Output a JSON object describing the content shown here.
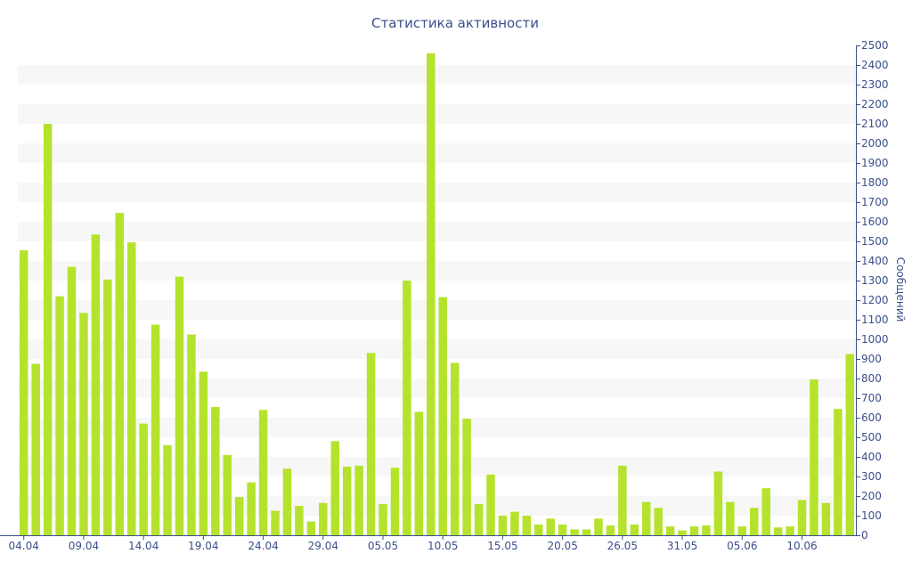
{
  "chart_data": {
    "type": "bar",
    "title": "Статистика активности",
    "xlabel": "",
    "ylabel": "Сообщений",
    "ylim": [
      0,
      2500
    ],
    "y_ticks": [
      0,
      100,
      200,
      300,
      400,
      500,
      600,
      700,
      800,
      900,
      1000,
      1100,
      1200,
      1300,
      1400,
      1500,
      1600,
      1700,
      1800,
      1900,
      2000,
      2100,
      2200,
      2300,
      2400,
      2500
    ],
    "y_axis_position": "right",
    "x_tick_labels": [
      "04.04",
      "09.04",
      "14.04",
      "19.04",
      "24.04",
      "29.04",
      "05.05",
      "10.05",
      "15.05",
      "20.05",
      "26.05",
      "31.05",
      "05.06",
      "10.06"
    ],
    "x_tick_every": 5,
    "grid": "alternating horizontal bands",
    "bar_color": "#b5e32d",
    "band_color": "#f7f7f7",
    "axis_color": "#3b4f8a",
    "values": [
      1455,
      875,
      2100,
      1220,
      1370,
      1135,
      1535,
      1305,
      1645,
      1495,
      570,
      1075,
      460,
      1320,
      1025,
      835,
      655,
      410,
      195,
      270,
      640,
      125,
      340,
      150,
      70,
      165,
      480,
      350,
      355,
      930,
      160,
      345,
      1300,
      630,
      2460,
      1215,
      880,
      595,
      160,
      310,
      100,
      120,
      100,
      55,
      85,
      55,
      30,
      30,
      85,
      50,
      355,
      55,
      170,
      140,
      45,
      25,
      45,
      50,
      325,
      170,
      45,
      140,
      240,
      40,
      45,
      180,
      795,
      165,
      645,
      925
    ]
  }
}
